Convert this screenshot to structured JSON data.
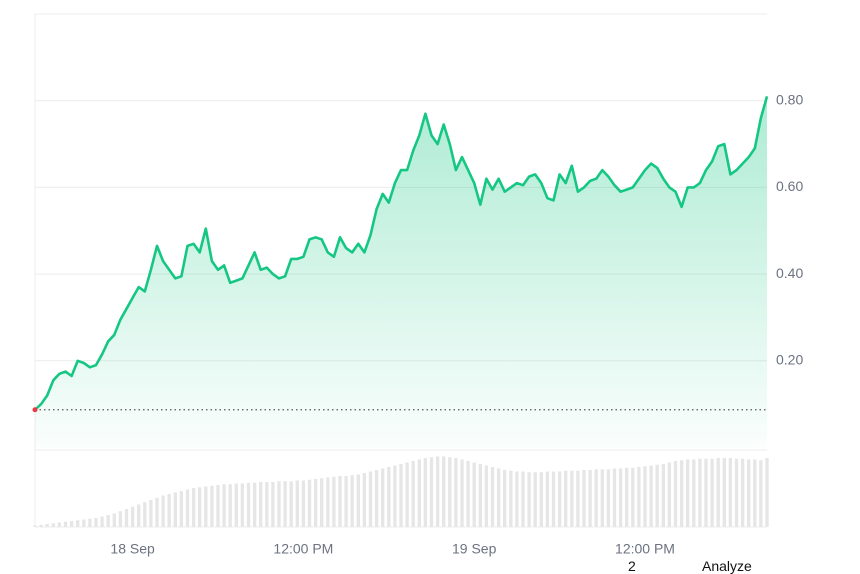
{
  "chart_data": [
    {
      "type": "line",
      "series": [
        {
          "color": "#16c784",
          "values": [
            0.087,
            0.1,
            0.12,
            0.155,
            0.17,
            0.175,
            0.165,
            0.2,
            0.195,
            0.185,
            0.19,
            0.215,
            0.245,
            0.26,
            0.295,
            0.32,
            0.345,
            0.37,
            0.36,
            0.41,
            0.465,
            0.43,
            0.41,
            0.39,
            0.395,
            0.465,
            0.47,
            0.45,
            0.505,
            0.43,
            0.41,
            0.42,
            0.38,
            0.385,
            0.39,
            0.42,
            0.45,
            0.41,
            0.415,
            0.4,
            0.39,
            0.395,
            0.435,
            0.435,
            0.44,
            0.48,
            0.485,
            0.48,
            0.45,
            0.44,
            0.485,
            0.46,
            0.45,
            0.47,
            0.45,
            0.49,
            0.55,
            0.585,
            0.565,
            0.61,
            0.64,
            0.64,
            0.685,
            0.72,
            0.77,
            0.72,
            0.7,
            0.745,
            0.7,
            0.64,
            0.67,
            0.64,
            0.61,
            0.56,
            0.62,
            0.595,
            0.62,
            0.59,
            0.6,
            0.61,
            0.605,
            0.625,
            0.63,
            0.61,
            0.575,
            0.57,
            0.63,
            0.61,
            0.65,
            0.59,
            0.6,
            0.615,
            0.62,
            0.64,
            0.625,
            0.605,
            0.59,
            0.595,
            0.6,
            0.62,
            0.64,
            0.655,
            0.645,
            0.62,
            0.6,
            0.59,
            0.555,
            0.6,
            0.6,
            0.61,
            0.64,
            0.66,
            0.695,
            0.7,
            0.63,
            0.64,
            0.655,
            0.67,
            0.69,
            0.76,
            0.81
          ]
        }
      ],
      "xlim": [
        0,
        120
      ],
      "xticks": [
        {
          "value": 16,
          "label": "18 Sep"
        },
        {
          "value": 44,
          "label": "12:00 PM"
        },
        {
          "value": 72,
          "label": "19 Sep"
        },
        {
          "value": 100,
          "label": "12:00 PM"
        }
      ],
      "ylim": [
        0,
        1
      ],
      "yticks": [
        {
          "value": 0.2,
          "label": "0.20"
        },
        {
          "value": 0.4,
          "label": "0.40"
        },
        {
          "value": 0.6,
          "label": "0.60"
        },
        {
          "value": 0.8,
          "label": "0.80"
        }
      ],
      "grid": true
    },
    {
      "type": "bar",
      "color": "#e6e6e6",
      "values": [
        2,
        3,
        4,
        5,
        6,
        7,
        8,
        9,
        10,
        11,
        12,
        14,
        16,
        18,
        21,
        24,
        27,
        30,
        33,
        36,
        39,
        42,
        44,
        46,
        48,
        50,
        52,
        53,
        54,
        55,
        56,
        57,
        57,
        58,
        58,
        59,
        59,
        60,
        60,
        60,
        61,
        61,
        61,
        62,
        62,
        63,
        64,
        65,
        66,
        67,
        68,
        68,
        69,
        70,
        72,
        74,
        76,
        78,
        80,
        82,
        84,
        86,
        88,
        90,
        92,
        93,
        94,
        94,
        93,
        92,
        90,
        88,
        86,
        84,
        82,
        80,
        78,
        76,
        75,
        74,
        74,
        73,
        73,
        73,
        74,
        74,
        74,
        75,
        75,
        75,
        76,
        76,
        77,
        77,
        77,
        78,
        78,
        79,
        79,
        80,
        81,
        82,
        83,
        84,
        86,
        88,
        89,
        90,
        90,
        91,
        91,
        91,
        92,
        92,
        92,
        91,
        91,
        90,
        90,
        89,
        92
      ],
      "ylim": [
        0,
        100
      ]
    }
  ],
  "footer": {
    "page": "2",
    "button": "Analyze"
  }
}
